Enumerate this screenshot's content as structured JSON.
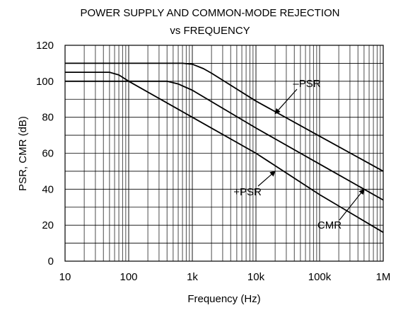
{
  "chart_data": {
    "type": "line",
    "title": "POWER SUPPLY AND COMMON-MODE REJECTION",
    "subtitle": "vs FREQUENCY",
    "xlabel": "Frequency (Hz)",
    "ylabel": "PSR, CMR (dB)",
    "x_scale": "log",
    "xlim": [
      10,
      1000000
    ],
    "ylim": [
      0,
      120
    ],
    "x_ticks": [
      10,
      100,
      1000,
      10000,
      100000,
      1000000
    ],
    "x_tick_labels": [
      "10",
      "100",
      "1k",
      "10k",
      "100k",
      "1M"
    ],
    "y_ticks": [
      0,
      20,
      40,
      60,
      80,
      100,
      120
    ],
    "y_tick_labels": [
      "0",
      "20",
      "40",
      "60",
      "80",
      "100",
      "120"
    ],
    "grid": true,
    "legend": "none",
    "series": [
      {
        "name": "–PSR",
        "x": [
          10,
          100,
          700,
          1000,
          1500,
          2000,
          10000,
          100000,
          1000000
        ],
        "y": [
          110,
          110,
          110,
          109.5,
          107,
          104.5,
          89,
          69.5,
          50
        ]
      },
      {
        "name": "+PSR",
        "x": [
          10,
          50,
          70,
          100,
          1000,
          10000,
          100000,
          1000000
        ],
        "y": [
          105,
          105,
          103.5,
          100,
          80,
          60,
          37,
          16
        ]
      },
      {
        "name": "CMR",
        "x": [
          10,
          400,
          600,
          1000,
          10000,
          100000,
          1000000
        ],
        "y": [
          100,
          100,
          98.5,
          95,
          74,
          54,
          34
        ]
      }
    ],
    "annotations": [
      {
        "text": "–PSR",
        "series": "–PSR",
        "at_x": 20000,
        "at_y": 82
      },
      {
        "text": "+PSR",
        "series": "+PSR",
        "at_x": 20000,
        "at_y": 50
      },
      {
        "text": "CMR",
        "series": "CMR",
        "at_x": 500000,
        "at_y": 40
      }
    ]
  },
  "colors": {
    "background": "#ffffff",
    "line": "#000000",
    "grid": "#000000"
  }
}
